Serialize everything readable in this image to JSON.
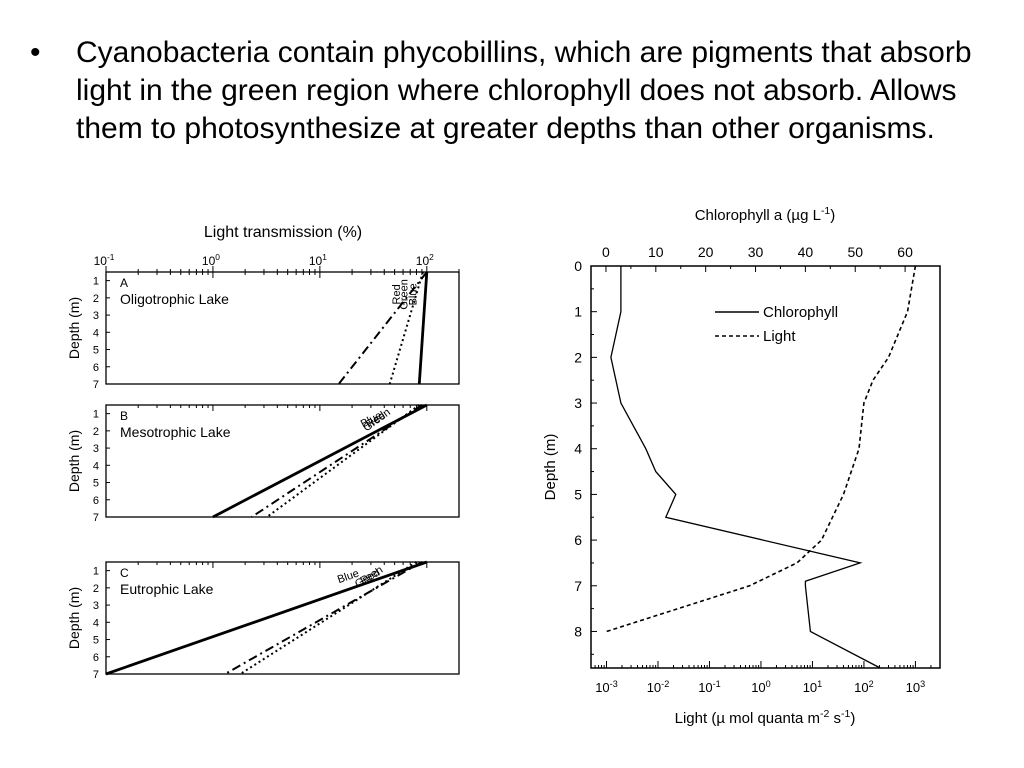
{
  "slide": {
    "bullet_symbol": "•",
    "bullet_text": "Cyanobacteria contain phycobillins, which are pigments that absorb light in the green region where chlorophyll does not absorb.  Allows them to photosynthesize at greater depths than other organisms."
  },
  "chart_data": [
    {
      "type": "line",
      "title": "Light transmission (%)",
      "x_axis": {
        "scale": "log",
        "ticks": [
          "10-1",
          "100",
          "101",
          "102"
        ],
        "tick_values": [
          0.1,
          1,
          10,
          100
        ],
        "range": [
          0.1,
          200
        ]
      },
      "y_axis": {
        "label": "Depth (m)",
        "ticks": [
          "1",
          "2",
          "3",
          "4",
          "5",
          "6",
          "7"
        ],
        "range": [
          0.5,
          7
        ]
      },
      "panels": [
        {
          "letter": "A",
          "name": "Oligotrophic Lake",
          "series": [
            {
              "name": "Red",
              "style": "dash-dot",
              "x": [
                100,
                15
              ],
              "y": [
                0.5,
                7
              ]
            },
            {
              "name": "Green",
              "style": "dotted",
              "x": [
                92,
                45
              ],
              "y": [
                0.5,
                7
              ]
            },
            {
              "name": "Blue",
              "style": "solid",
              "x": [
                100,
                85
              ],
              "y": [
                0.5,
                7
              ]
            }
          ]
        },
        {
          "letter": "B",
          "name": "Mesotrophic Lake",
          "series": [
            {
              "name": "Blue",
              "style": "solid",
              "x": [
                100,
                1
              ],
              "y": [
                0.5,
                7
              ]
            },
            {
              "name": "Red",
              "style": "dash-dot",
              "x": [
                90,
                2.3
              ],
              "y": [
                0.5,
                7
              ]
            },
            {
              "name": "Green",
              "style": "dotted",
              "x": [
                85,
                3.2
              ],
              "y": [
                0.5,
                7
              ]
            }
          ]
        },
        {
          "letter": "C",
          "name": "Eutrophic Lake",
          "series": [
            {
              "name": "Blue",
              "style": "solid",
              "x": [
                100,
                0.1
              ],
              "y": [
                0.5,
                7
              ]
            },
            {
              "name": "Red",
              "style": "dash-dot",
              "x": [
                90,
                1.3
              ],
              "y": [
                0.5,
                7
              ]
            },
            {
              "name": "Green",
              "style": "dotted",
              "x": [
                80,
                1.8
              ],
              "y": [
                0.5,
                7
              ]
            }
          ]
        }
      ]
    },
    {
      "type": "line",
      "title": "Chlorophyll a (µg L-1)",
      "top_axis": {
        "label": "Chlorophyll a (µg L-1)",
        "ticks": [
          0,
          10,
          20,
          30,
          40,
          50,
          60
        ],
        "range": [
          -3,
          67
        ]
      },
      "bottom_axis": {
        "label": "Light (µ mol quanta m-2 s-1)",
        "scale": "log",
        "ticks": [
          "10-3",
          "10-2",
          "10-1",
          "100",
          "101",
          "102",
          "103"
        ],
        "tick_values": [
          0.001,
          0.01,
          0.1,
          1,
          10,
          100,
          1000
        ],
        "range": [
          0.0005,
          3000
        ]
      },
      "y_axis": {
        "label": "Depth (m)",
        "ticks": [
          0,
          1,
          2,
          3,
          4,
          5,
          6,
          7,
          8
        ],
        "range": [
          0,
          8.8
        ]
      },
      "legend": {
        "position": "top-right",
        "entries": [
          "Chlorophyll",
          "Light"
        ]
      },
      "series": [
        {
          "name": "Chlorophyll",
          "style": "solid",
          "axis": "top",
          "x": [
            3,
            3,
            3,
            1,
            3,
            8,
            10,
            14,
            12,
            51,
            40,
            40,
            41,
            55
          ],
          "y": [
            0,
            0.4,
            1.0,
            2.0,
            3.0,
            4.0,
            4.5,
            5.0,
            5.5,
            6.5,
            6.9,
            7.0,
            8.0,
            8.8
          ]
        },
        {
          "name": "Light",
          "style": "dashed",
          "axis": "bottom",
          "x": [
            1000,
            700,
            300,
            150,
            100,
            80,
            40,
            15,
            5,
            0.6,
            0.001
          ],
          "y": [
            0,
            1,
            2,
            2.5,
            3,
            4,
            5,
            6,
            6.5,
            7,
            8
          ]
        }
      ]
    }
  ]
}
